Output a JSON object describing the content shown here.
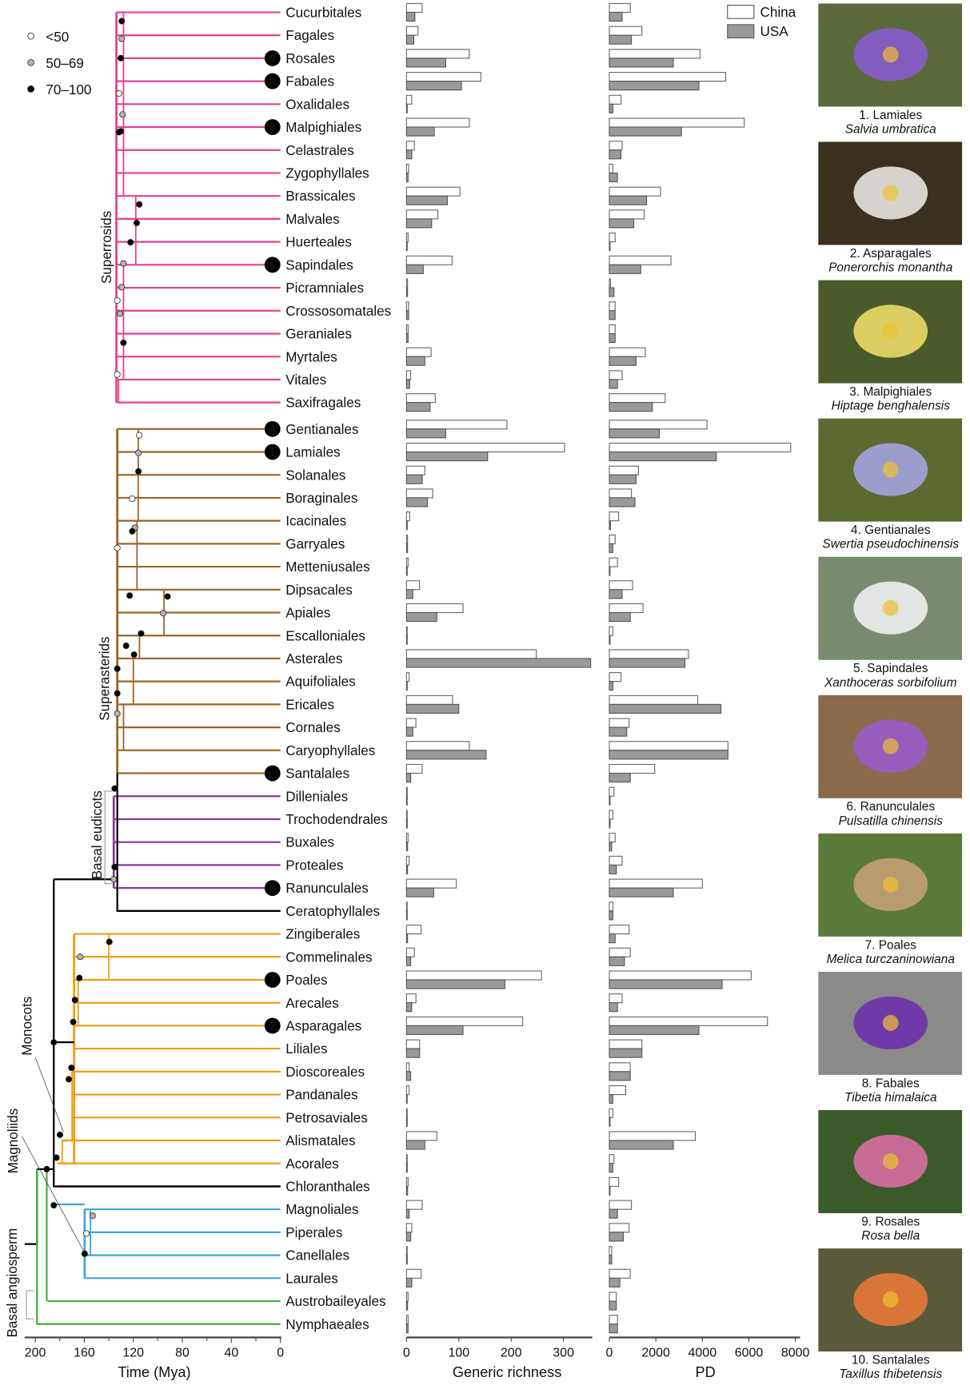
{
  "chart_data": {
    "type": "bar",
    "title": "",
    "legend": {
      "support_title": "",
      "support_items": [
        {
          "label": "<50",
          "fill": "#ffffff"
        },
        {
          "label": "50–69",
          "fill": "#b4b4b4"
        },
        {
          "label": "70–100",
          "fill": "#000000"
        }
      ],
      "country_items": [
        {
          "label": "China",
          "fill": "#ffffff"
        },
        {
          "label": "USA",
          "fill": "#9a9a9a"
        }
      ],
      "country_placement": "top-right"
    },
    "clade_colors": {
      "superrosids": "#e5408f",
      "superasterids": "#9a6424",
      "basal_eudicots": "#8a3a9a",
      "monocots": "#f39c12",
      "magnoliids": "#3aa6dd",
      "basal_angiosperm": "#3fb03f",
      "backbone": "#000000"
    },
    "clade_labels": [
      "Superrosids",
      "Superasterids",
      "Basal eudicots",
      "Monocots",
      "Magnoliids",
      "Basal angiosperm"
    ],
    "tree_axis": {
      "xlabel": "Time (Mya)",
      "ticks": [
        "200",
        "160",
        "120",
        "80",
        "40",
        "0"
      ],
      "range": [
        210,
        0
      ]
    },
    "richness_axis": {
      "xlabel": "Generic richness",
      "ticks": [
        "0",
        "100",
        "200",
        "300"
      ],
      "range": [
        0,
        355
      ]
    },
    "pd_axis": {
      "xlabel": "PD",
      "ticks": [
        "0",
        "2000",
        "4000",
        "6000",
        "8000"
      ],
      "range": [
        0,
        8200
      ]
    },
    "categories": [
      "Cucurbitales",
      "Fagales",
      "Rosales",
      "Fabales",
      "Oxalidales",
      "Malpighiales",
      "Celastrales",
      "Zygophyllales",
      "Brassicales",
      "Malvales",
      "Huerteales",
      "Sapindales",
      "Picramniales",
      "Crossosomatales",
      "Geraniales",
      "Myrtales",
      "Vitales",
      "Saxifragales",
      "Gentianales",
      "Lamiales",
      "Solanales",
      "Boraginales",
      "Icacinales",
      "Garryales",
      "Metteniusales",
      "Dipsacales",
      "Apiales",
      "Escalloniales",
      "Asterales",
      "Aquifoliales",
      "Ericales",
      "Cornales",
      "Caryophyllales",
      "Santalales",
      "Dilleniales",
      "Trochodendrales",
      "Buxales",
      "Proteales",
      "Ranunculales",
      "Ceratophyllales",
      "Zingiberales",
      "Commelinales",
      "Poales",
      "Arecales",
      "Asparagales",
      "Liliales",
      "Dioscoreales",
      "Pandanales",
      "Petrosaviales",
      "Alismatales",
      "Acorales",
      "Chloranthales",
      "Magnoliales",
      "Piperales",
      "Canellales",
      "Laurales",
      "Austrobaileyales",
      "Nymphaeales"
    ],
    "clade_of_order": [
      "superrosids",
      "superrosids",
      "superrosids",
      "superrosids",
      "superrosids",
      "superrosids",
      "superrosids",
      "superrosids",
      "superrosids",
      "superrosids",
      "superrosids",
      "superrosids",
      "superrosids",
      "superrosids",
      "superrosids",
      "superrosids",
      "superrosids",
      "superrosids",
      "superasterids",
      "superasterids",
      "superasterids",
      "superasterids",
      "superasterids",
      "superasterids",
      "superasterids",
      "superasterids",
      "superasterids",
      "superasterids",
      "superasterids",
      "superasterids",
      "superasterids",
      "superasterids",
      "superasterids",
      "superasterids",
      "basal_eudicots",
      "basal_eudicots",
      "basal_eudicots",
      "basal_eudicots",
      "basal_eudicots",
      "backbone",
      "monocots",
      "monocots",
      "monocots",
      "monocots",
      "monocots",
      "monocots",
      "monocots",
      "monocots",
      "monocots",
      "monocots",
      "monocots",
      "backbone",
      "magnoliids",
      "magnoliids",
      "magnoliids",
      "magnoliids",
      "basal_angiosperm",
      "basal_angiosperm"
    ],
    "highlight_numbers": {
      "Rosales": "9",
      "Fabales": "8",
      "Malpighiales": "3",
      "Sapindales": "5",
      "Gentianales": "4",
      "Lamiales": "1",
      "Santalales": "10",
      "Ranunculales": "6",
      "Poales": "7",
      "Asparagales": "2"
    },
    "tip_age_mya": [
      128,
      128,
      128,
      128,
      128,
      128,
      128,
      128,
      118,
      118,
      118,
      128,
      128,
      128,
      128,
      128,
      132,
      132,
      116,
      116,
      116,
      116,
      117,
      117,
      117,
      95,
      95,
      115,
      120,
      120,
      128,
      128,
      133,
      133,
      133,
      133,
      133,
      133,
      133,
      133,
      140,
      140,
      165,
      165,
      168,
      168,
      170,
      170,
      170,
      178,
      182,
      182,
      155,
      155,
      160,
      160,
      190,
      196
    ],
    "series": [
      {
        "name": "China",
        "metric": "Generic richness",
        "values": [
          30,
          22,
          120,
          142,
          10,
          120,
          15,
          4,
          102,
          60,
          3,
          87,
          2,
          4,
          3,
          47,
          8,
          55,
          192,
          302,
          35,
          50,
          6,
          2,
          3,
          25,
          108,
          1,
          248,
          5,
          88,
          18,
          120,
          30,
          1,
          1,
          3,
          5,
          95,
          0,
          28,
          15,
          258,
          18,
          222,
          25,
          5,
          5,
          1,
          58,
          1,
          3,
          30,
          10,
          1,
          28,
          3,
          3
        ]
      },
      {
        "name": "USA",
        "metric": "Generic richness",
        "values": [
          16,
          14,
          75,
          105,
          1,
          53,
          10,
          3,
          78,
          48,
          1,
          32,
          2,
          4,
          3,
          35,
          6,
          45,
          75,
          155,
          30,
          40,
          1,
          2,
          1,
          12,
          58,
          1,
          352,
          1,
          100,
          12,
          152,
          8,
          0,
          0,
          2,
          2,
          52,
          1,
          2,
          8,
          188,
          10,
          108,
          25,
          8,
          1,
          1,
          35,
          0,
          2,
          5,
          8,
          1,
          10,
          2,
          3
        ]
      },
      {
        "name": "China",
        "metric": "PD",
        "values": [
          900,
          1400,
          3900,
          5000,
          500,
          5800,
          550,
          150,
          2200,
          1500,
          250,
          2650,
          50,
          250,
          250,
          1550,
          550,
          2400,
          4200,
          7800,
          1250,
          950,
          400,
          250,
          350,
          1000,
          1450,
          150,
          3400,
          500,
          3800,
          850,
          5100,
          1950,
          200,
          150,
          250,
          550,
          4000,
          150,
          850,
          900,
          6100,
          550,
          6800,
          1400,
          900,
          700,
          150,
          3700,
          200,
          400,
          950,
          850,
          100,
          900,
          300,
          350
        ]
      },
      {
        "name": "USA",
        "metric": "PD",
        "values": [
          550,
          950,
          2750,
          3850,
          150,
          3100,
          500,
          350,
          1600,
          1050,
          0,
          1350,
          200,
          250,
          250,
          1150,
          350,
          1850,
          2150,
          4600,
          1150,
          1100,
          50,
          150,
          0,
          550,
          900,
          0,
          3250,
          150,
          4800,
          750,
          5100,
          900,
          0,
          0,
          100,
          300,
          2750,
          150,
          250,
          650,
          4850,
          350,
          3850,
          1400,
          900,
          150,
          0,
          2750,
          150,
          0,
          350,
          600,
          100,
          450,
          300,
          350
        ]
      }
    ]
  },
  "photos": [
    {
      "number": "1",
      "order": "Lamiales",
      "species": "Salvia umbratica",
      "caption": "1. Lamiales"
    },
    {
      "number": "2",
      "order": "Asparagales",
      "species": "Ponerorchis monantha",
      "caption": "2. Asparagales"
    },
    {
      "number": "3",
      "order": "Malpighiales",
      "species": "Hiptage benghalensis",
      "caption": "3. Malpighiales"
    },
    {
      "number": "4",
      "order": "Gentianales",
      "species": "Swertia pseudochinensis",
      "caption": "4. Gentianales"
    },
    {
      "number": "5",
      "order": "Sapindales",
      "species": "Xanthoceras sorbifolium",
      "caption": "5. Sapindales"
    },
    {
      "number": "6",
      "order": "Ranunculales",
      "species": "Pulsatilla chinensis",
      "caption": "6. Ranunculales"
    },
    {
      "number": "7",
      "order": "Poales",
      "species": "Melica turczaninowiana",
      "caption": "7. Poales"
    },
    {
      "number": "8",
      "order": "Fabales",
      "species": "Tibetia himalaica",
      "caption": "8. Fabales"
    },
    {
      "number": "9",
      "order": "Rosales",
      "species": "Rosa bella",
      "caption": "9. Rosales"
    },
    {
      "number": "10",
      "order": "Santalales",
      "species": "Taxillus thibetensis",
      "caption": "10. Santalales"
    }
  ],
  "photo_palette": [
    {
      "bg": "#5a6a3a",
      "accent": "#8a5ad6"
    },
    {
      "bg": "#3a3020",
      "accent": "#f2f0ee"
    },
    {
      "bg": "#4a5a2a",
      "accent": "#f4e26a"
    },
    {
      "bg": "#5a6a30",
      "accent": "#a9a6e6"
    },
    {
      "bg": "#7a8a70",
      "accent": "#f4f4f4"
    },
    {
      "bg": "#8a6a4a",
      "accent": "#9a5ad0"
    },
    {
      "bg": "#5a7a3a",
      "accent": "#c9a27a"
    },
    {
      "bg": "#8a8a88",
      "accent": "#6a2ab0"
    },
    {
      "bg": "#3a5a2a",
      "accent": "#e070a8"
    },
    {
      "bg": "#5a5a3a",
      "accent": "#f07a3a"
    }
  ]
}
